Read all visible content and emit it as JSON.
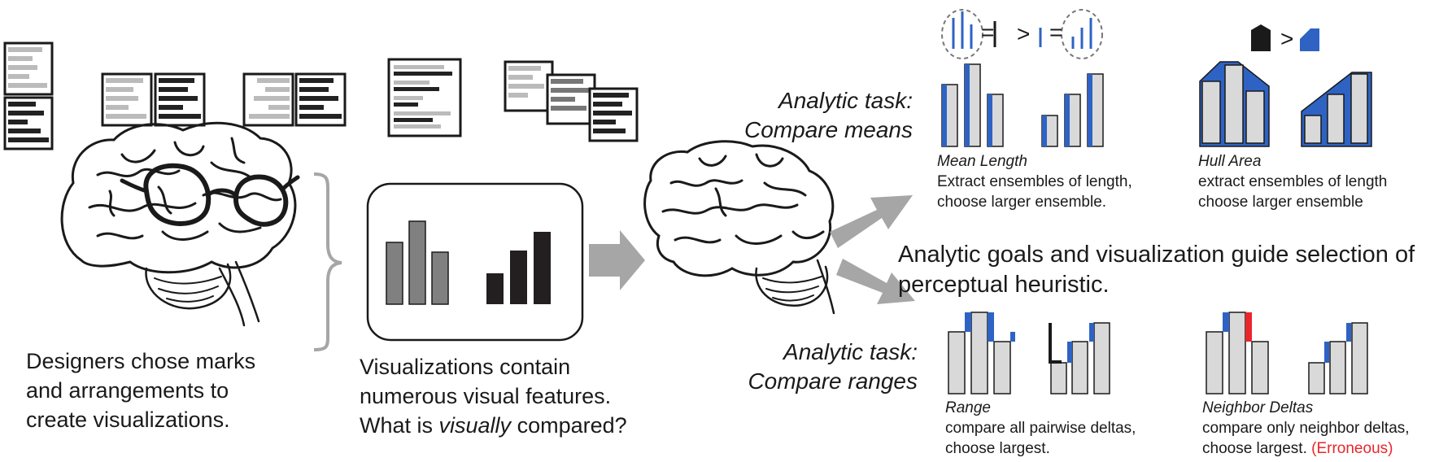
{
  "captions": {
    "designers": [
      "Designers chose marks",
      "and arrangements to",
      "create visualizations."
    ],
    "visualizations": {
      "line1": "Visualizations contain",
      "line2": "numerous visual features.",
      "line3_pre": "What is ",
      "line3_em": "visually",
      "line3_post": " compared?"
    }
  },
  "tasks": {
    "means": {
      "line1": "Analytic task:",
      "line2": "Compare means"
    },
    "ranges": {
      "line1": "Analytic task:",
      "line2": "Compare ranges"
    }
  },
  "heuristics": {
    "mean_length": {
      "title": "Mean Length",
      "desc1": "Extract ensembles of length,",
      "desc2": "choose larger ensemble."
    },
    "hull_area": {
      "title": "Hull Area",
      "desc1": "extract ensembles of length",
      "desc2": "choose larger ensemble"
    },
    "range": {
      "title": "Range",
      "desc1": "compare all pairwise deltas,",
      "desc2": "choose largest."
    },
    "neighbor_deltas": {
      "title": "Neighbor Deltas",
      "desc1": "compare only neighbor deltas,",
      "desc2": "choose largest. ",
      "flag": "(Erroneous)"
    }
  },
  "goal_statement": {
    "line1": "Analytic goals and visualization guide selection of",
    "line2": "perceptual heuristic."
  },
  "symbols": {
    "equals": "=",
    "greater": ">"
  },
  "colors": {
    "ink": "#1a1a1a",
    "bar_fill": "#d9d9d9",
    "accent_blue": "#2e63c4",
    "error_red": "#e8262c",
    "arrow_gray": "#a6a6a6",
    "chart_dark": "#231f20",
    "chart_gray": "#808080"
  }
}
